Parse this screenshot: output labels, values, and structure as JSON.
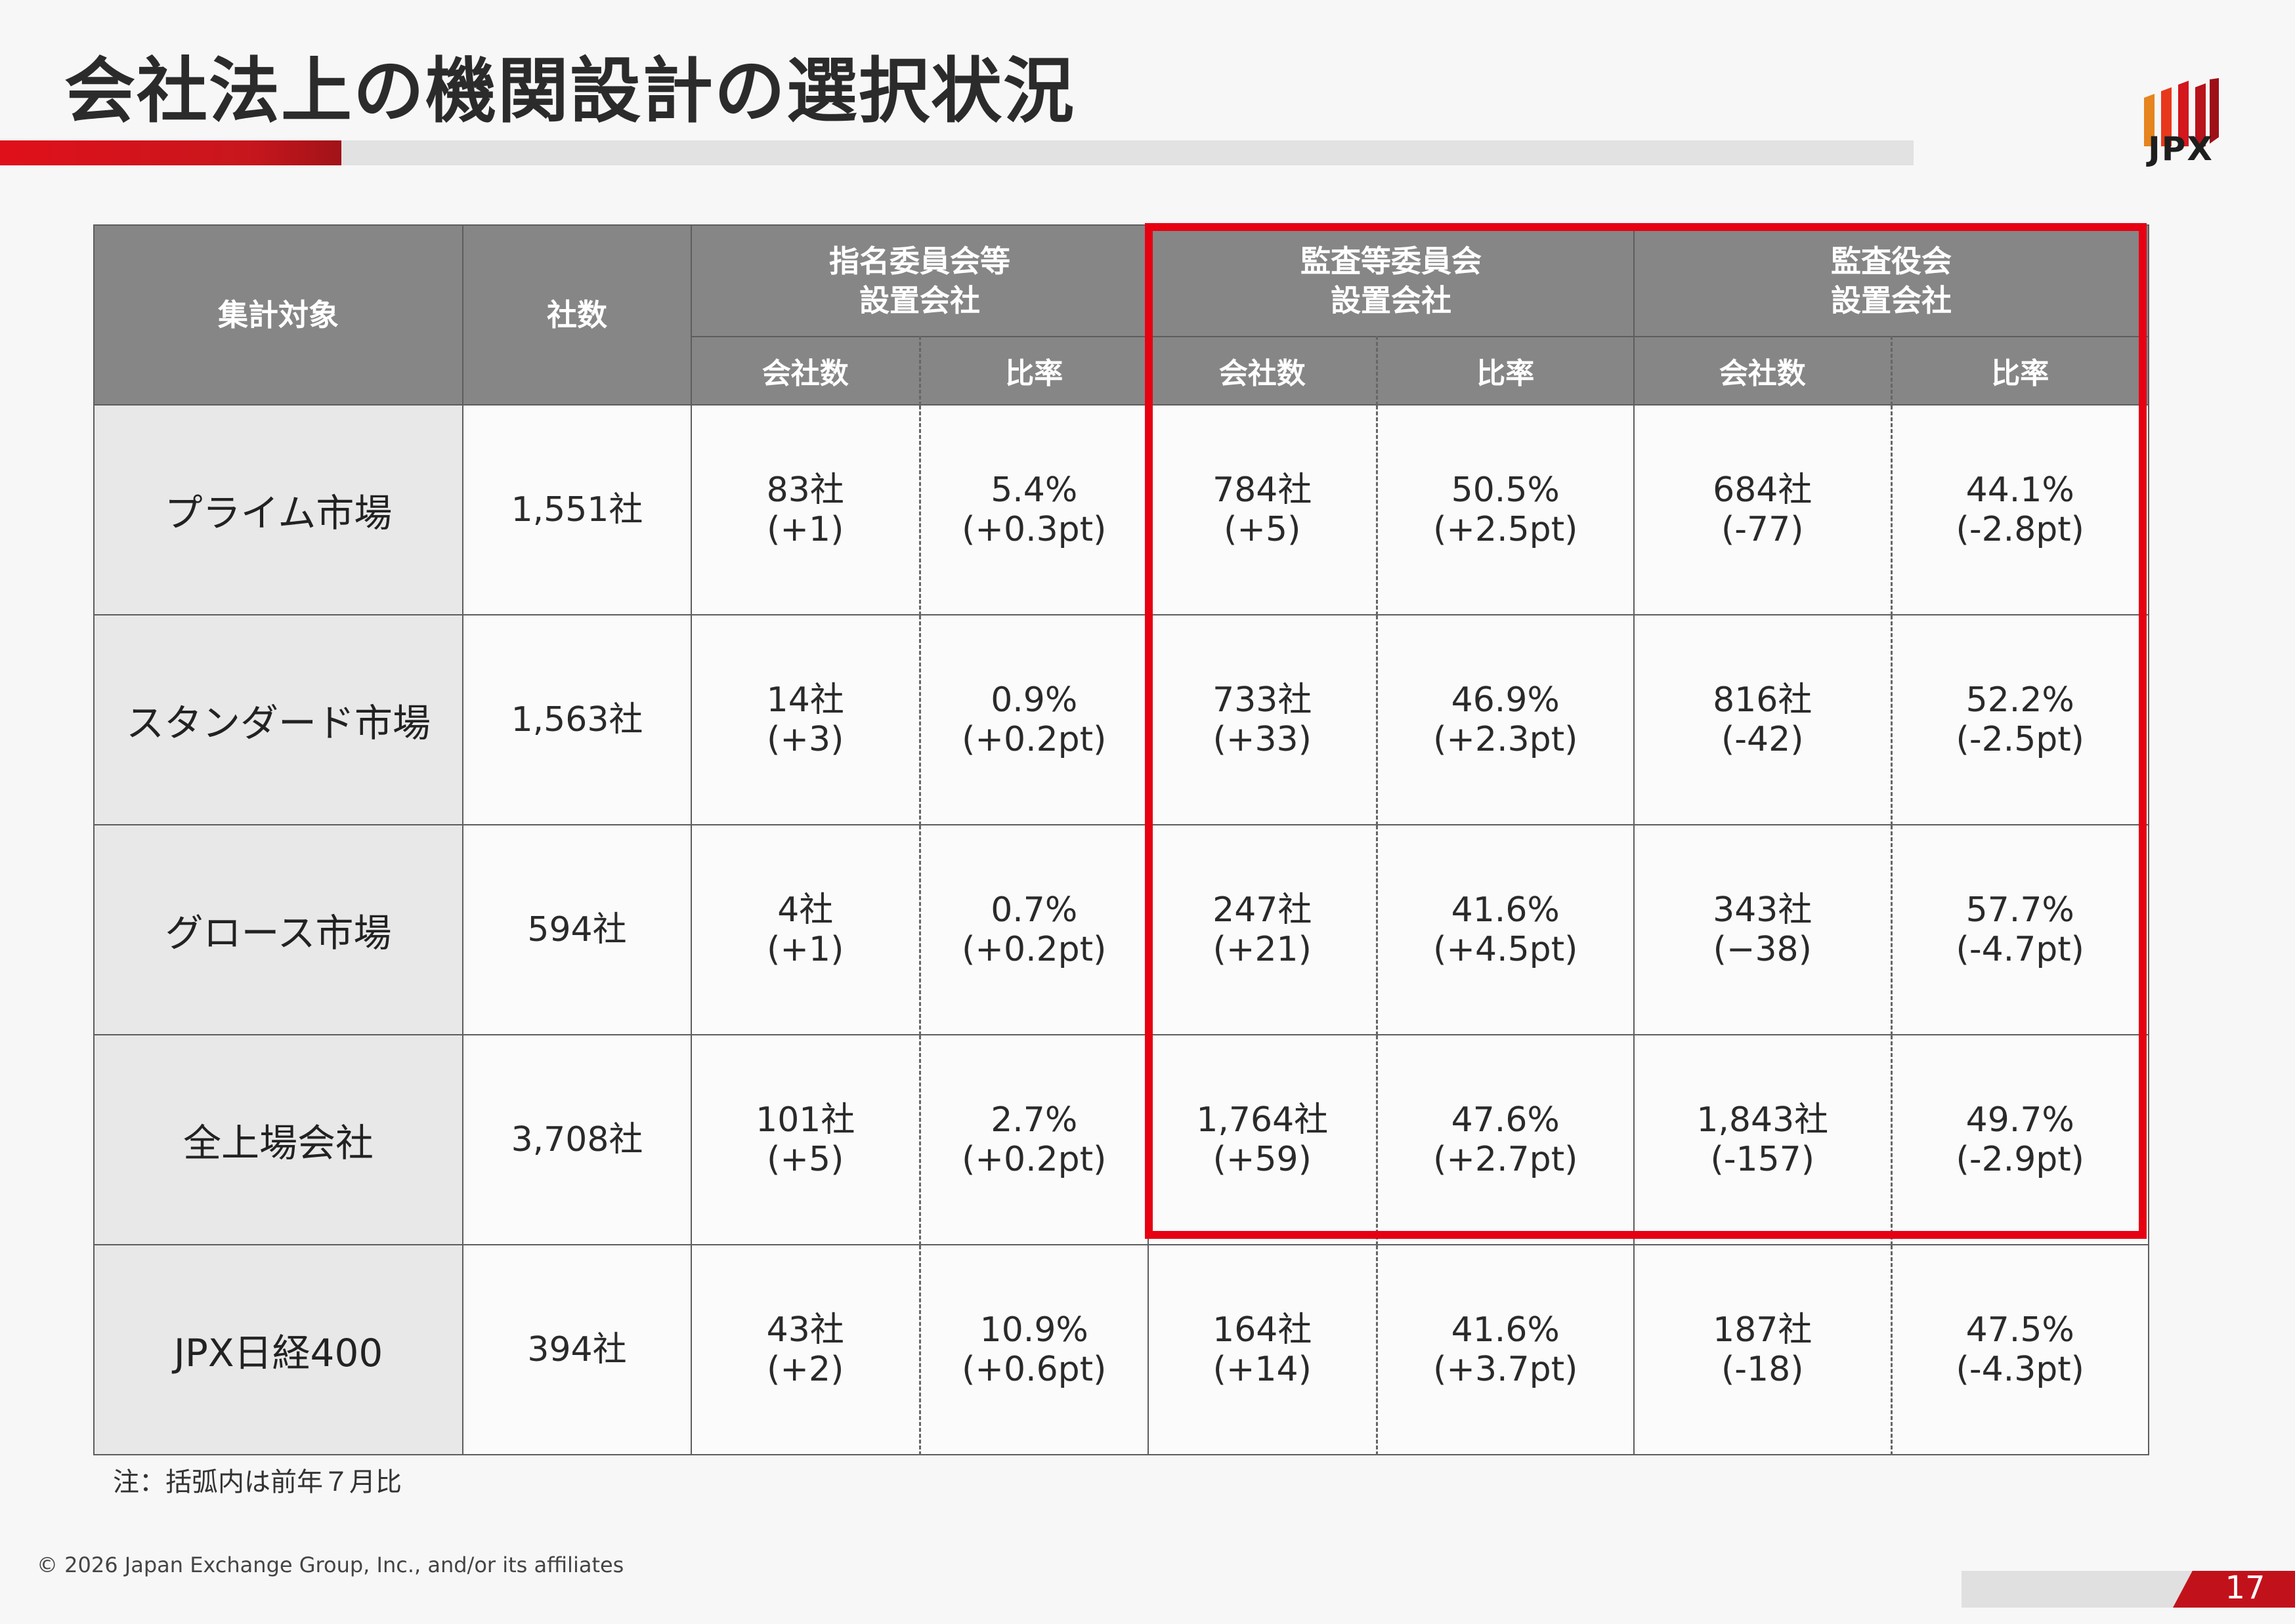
{
  "title": "会社法上の機関設計の選択状況",
  "logo": {
    "text": "JPX"
  },
  "table": {
    "header": {
      "target": "集計対象",
      "companies": "社数",
      "nomination": "指名委員会等\n設置会社",
      "audit_committee": "監査等委員会\n設置会社",
      "kansayaku": "監査役会\n設置会社",
      "count_label": "会社数",
      "ratio_label": "比率"
    },
    "rows": [
      {
        "label": "プライム市場",
        "total": "1,551社",
        "nom_count": "83社\n(+1)",
        "nom_ratio": "5.4%\n(+0.3pt)",
        "ac_count": "784社\n(+5)",
        "ac_ratio": "50.5%\n(+2.5pt)",
        "ky_count": "684社\n(-77)",
        "ky_ratio": "44.1%\n(-2.8pt)"
      },
      {
        "label": "スタンダード市場",
        "total": "1,563社",
        "nom_count": "14社\n(+3)",
        "nom_ratio": "0.9%\n(+0.2pt)",
        "ac_count": "733社\n(+33)",
        "ac_ratio": "46.9%\n(+2.3pt)",
        "ky_count": "816社\n(-42)",
        "ky_ratio": "52.2%\n(-2.5pt)"
      },
      {
        "label": "グロース市場",
        "total": "594社",
        "nom_count": "4社\n(+1)",
        "nom_ratio": "0.7%\n(+0.2pt)",
        "ac_count": "247社\n(+21)",
        "ac_ratio": "41.6%\n(+4.5pt)",
        "ky_count": "343社\n(−38)",
        "ky_ratio": "57.7%\n(-4.7pt)"
      },
      {
        "label": "全上場会社",
        "total": "3,708社",
        "nom_count": "101社\n(+5)",
        "nom_ratio": "2.7%\n(+0.2pt)",
        "ac_count": "1,764社\n(+59)",
        "ac_ratio": "47.6%\n(+2.7pt)",
        "ky_count": "1,843社\n(-157)",
        "ky_ratio": "49.7%\n(-2.9pt)"
      },
      {
        "label": "JPX日経400",
        "total": "394社",
        "nom_count": "43社\n(+2)",
        "nom_ratio": "10.9%\n(+0.6pt)",
        "ac_count": "164社\n(+14)",
        "ac_ratio": "41.6%\n(+3.7pt)",
        "ky_count": "187社\n(-18)",
        "ky_ratio": "47.5%\n(-4.3pt)"
      }
    ]
  },
  "note": "注：括弧内は前年７月比",
  "footer": {
    "copyright": "© 2026 Japan Exchange Group, Inc., and/or its affiliates",
    "page": "17"
  },
  "colors": {
    "accent_red": "#e60012",
    "header_gray": "#868686"
  }
}
